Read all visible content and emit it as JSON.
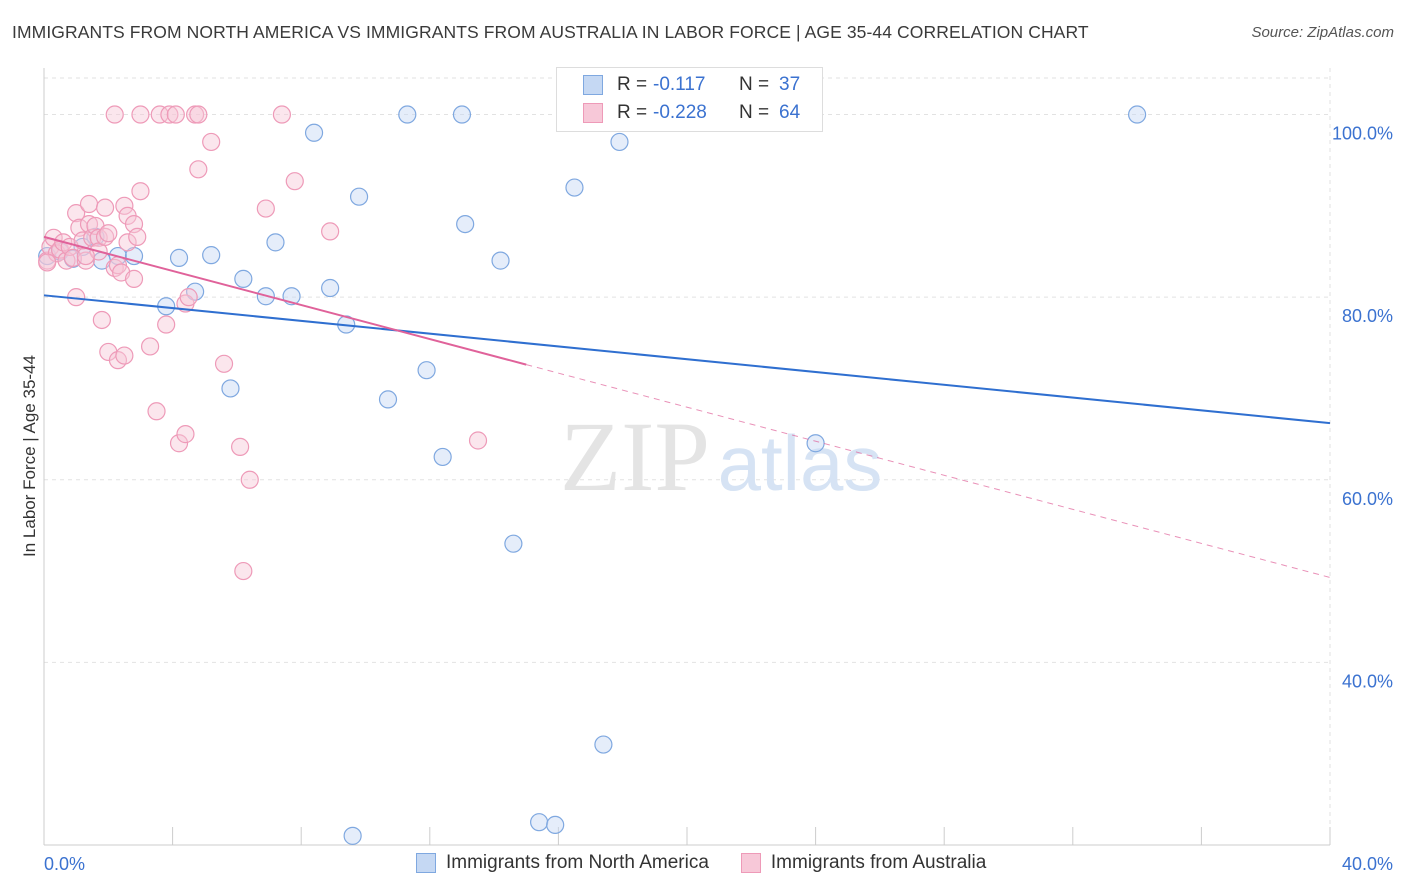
{
  "title": "IMMIGRANTS FROM NORTH AMERICA VS IMMIGRANTS FROM AUSTRALIA IN LABOR FORCE | AGE 35-44 CORRELATION CHART",
  "source": "Source: ZipAtlas.com",
  "watermark": {
    "zip": "ZIP",
    "atlas": "atlas"
  },
  "legend": {
    "r_label": "R =",
    "n_label": "N =",
    "rows": [
      {
        "r": "-0.117",
        "n": "37"
      },
      {
        "r": "-0.228",
        "n": "64"
      }
    ]
  },
  "bottom_legend": [
    "Immigrants from North America",
    "Immigrants from Australia"
  ],
  "colors": {
    "blue_stroke": "#7fa8e0",
    "blue_fill": "#c5d8f3",
    "blue_line": "#2f6fd0",
    "pink_stroke": "#ee9ab8",
    "pink_fill": "#f7c8d8",
    "pink_line": "#e0629a",
    "tick_text": "#3b72d0",
    "grid": "#e2e2e2"
  },
  "chart_data": {
    "type": "scatter",
    "title": "IMMIGRANTS FROM NORTH AMERICA VS IMMIGRANTS FROM AUSTRALIA IN LABOR FORCE | AGE 35-44 CORRELATION CHART",
    "xlabel": "",
    "ylabel": "In Labor Force | Age 35-44",
    "xlim": [
      0,
      40
    ],
    "ylim": [
      20,
      104
    ],
    "x_ticks": [
      "0.0%",
      "40.0%"
    ],
    "y_ticks": [
      {
        "value": 40,
        "label": "40.0%"
      },
      {
        "value": 60,
        "label": "60.0%"
      },
      {
        "value": 80,
        "label": "80.0%"
      },
      {
        "value": 100,
        "label": "100.0%"
      }
    ],
    "grid": true,
    "legend_position": "top-center",
    "series": [
      {
        "name": "Immigrants from North America",
        "r": -0.117,
        "n": 37,
        "trend": {
          "x0": 0,
          "y0": 80.2,
          "x1": 40,
          "y1": 66.2,
          "solid_until": 40
        },
        "points": [
          [
            0.1,
            84.5
          ],
          [
            0.5,
            85.0
          ],
          [
            1.2,
            85.5
          ],
          [
            1.8,
            84.0
          ],
          [
            2.3,
            84.5
          ],
          [
            2.8,
            84.5
          ],
          [
            3.8,
            79.0
          ],
          [
            4.2,
            84.3
          ],
          [
            4.7,
            80.6
          ],
          [
            5.2,
            84.6
          ],
          [
            5.8,
            70.0
          ],
          [
            6.2,
            82.0
          ],
          [
            6.9,
            80.1
          ],
          [
            7.2,
            86.0
          ],
          [
            7.7,
            80.1
          ],
          [
            8.4,
            98.0
          ],
          [
            8.9,
            81.0
          ],
          [
            9.4,
            77.0
          ],
          [
            9.6,
            21.0
          ],
          [
            9.8,
            91.0
          ],
          [
            10.7,
            68.8
          ],
          [
            11.3,
            100.0
          ],
          [
            11.9,
            72.0
          ],
          [
            12.4,
            62.5
          ],
          [
            13.0,
            100.0
          ],
          [
            13.1,
            88.0
          ],
          [
            14.2,
            84.0
          ],
          [
            14.6,
            53.0
          ],
          [
            15.4,
            22.5
          ],
          [
            15.9,
            22.2
          ],
          [
            16.5,
            92.0
          ],
          [
            17.4,
            31.0
          ],
          [
            17.9,
            97.0
          ],
          [
            24.0,
            64.0
          ],
          [
            34.0,
            100.0
          ],
          [
            1.6,
            86.6
          ],
          [
            0.9,
            84.2
          ]
        ]
      },
      {
        "name": "Immigrants from Australia",
        "r": -0.228,
        "n": 64,
        "trend": {
          "x0": 0,
          "y0": 86.6,
          "x1": 40,
          "y1": 49.3,
          "solid_until": 15.0
        },
        "points": [
          [
            0.1,
            84.0
          ],
          [
            0.2,
            85.5
          ],
          [
            0.3,
            86.5
          ],
          [
            0.4,
            84.8
          ],
          [
            0.5,
            85.2
          ],
          [
            0.6,
            86.0
          ],
          [
            0.7,
            84.0
          ],
          [
            0.8,
            85.5
          ],
          [
            0.9,
            84.3
          ],
          [
            1.0,
            80.0
          ],
          [
            1.0,
            89.2
          ],
          [
            1.1,
            87.6
          ],
          [
            1.2,
            86.2
          ],
          [
            1.3,
            84.0
          ],
          [
            1.4,
            88.0
          ],
          [
            1.4,
            90.2
          ],
          [
            1.5,
            86.5
          ],
          [
            1.6,
            87.8
          ],
          [
            1.7,
            86.5
          ],
          [
            1.7,
            85.0
          ],
          [
            1.8,
            77.5
          ],
          [
            1.9,
            86.6
          ],
          [
            1.9,
            89.8
          ],
          [
            2.0,
            87.0
          ],
          [
            2.0,
            74.0
          ],
          [
            2.2,
            83.2
          ],
          [
            2.3,
            83.5
          ],
          [
            2.3,
            73.1
          ],
          [
            2.4,
            82.7
          ],
          [
            2.5,
            90.0
          ],
          [
            2.5,
            73.6
          ],
          [
            2.6,
            86.0
          ],
          [
            2.6,
            88.9
          ],
          [
            2.8,
            82.0
          ],
          [
            2.8,
            88.0
          ],
          [
            2.9,
            86.6
          ],
          [
            2.2,
            100.0
          ],
          [
            3.0,
            91.6
          ],
          [
            3.0,
            100.0
          ],
          [
            3.3,
            74.6
          ],
          [
            3.5,
            67.5
          ],
          [
            3.6,
            100.0
          ],
          [
            3.8,
            77.0
          ],
          [
            3.9,
            100.0
          ],
          [
            4.1,
            100.0
          ],
          [
            4.2,
            64.0
          ],
          [
            4.4,
            65.0
          ],
          [
            4.4,
            79.3
          ],
          [
            4.5,
            80.0
          ],
          [
            4.7,
            100.0
          ],
          [
            4.8,
            100.0
          ],
          [
            4.8,
            94.0
          ],
          [
            5.2,
            97.0
          ],
          [
            5.6,
            72.7
          ],
          [
            6.1,
            63.6
          ],
          [
            6.4,
            60.0
          ],
          [
            6.2,
            50.0
          ],
          [
            6.9,
            89.7
          ],
          [
            7.4,
            100.0
          ],
          [
            7.8,
            92.7
          ],
          [
            8.9,
            87.2
          ],
          [
            13.5,
            64.3
          ],
          [
            1.3,
            84.5
          ],
          [
            0.1,
            83.8
          ]
        ]
      }
    ]
  }
}
